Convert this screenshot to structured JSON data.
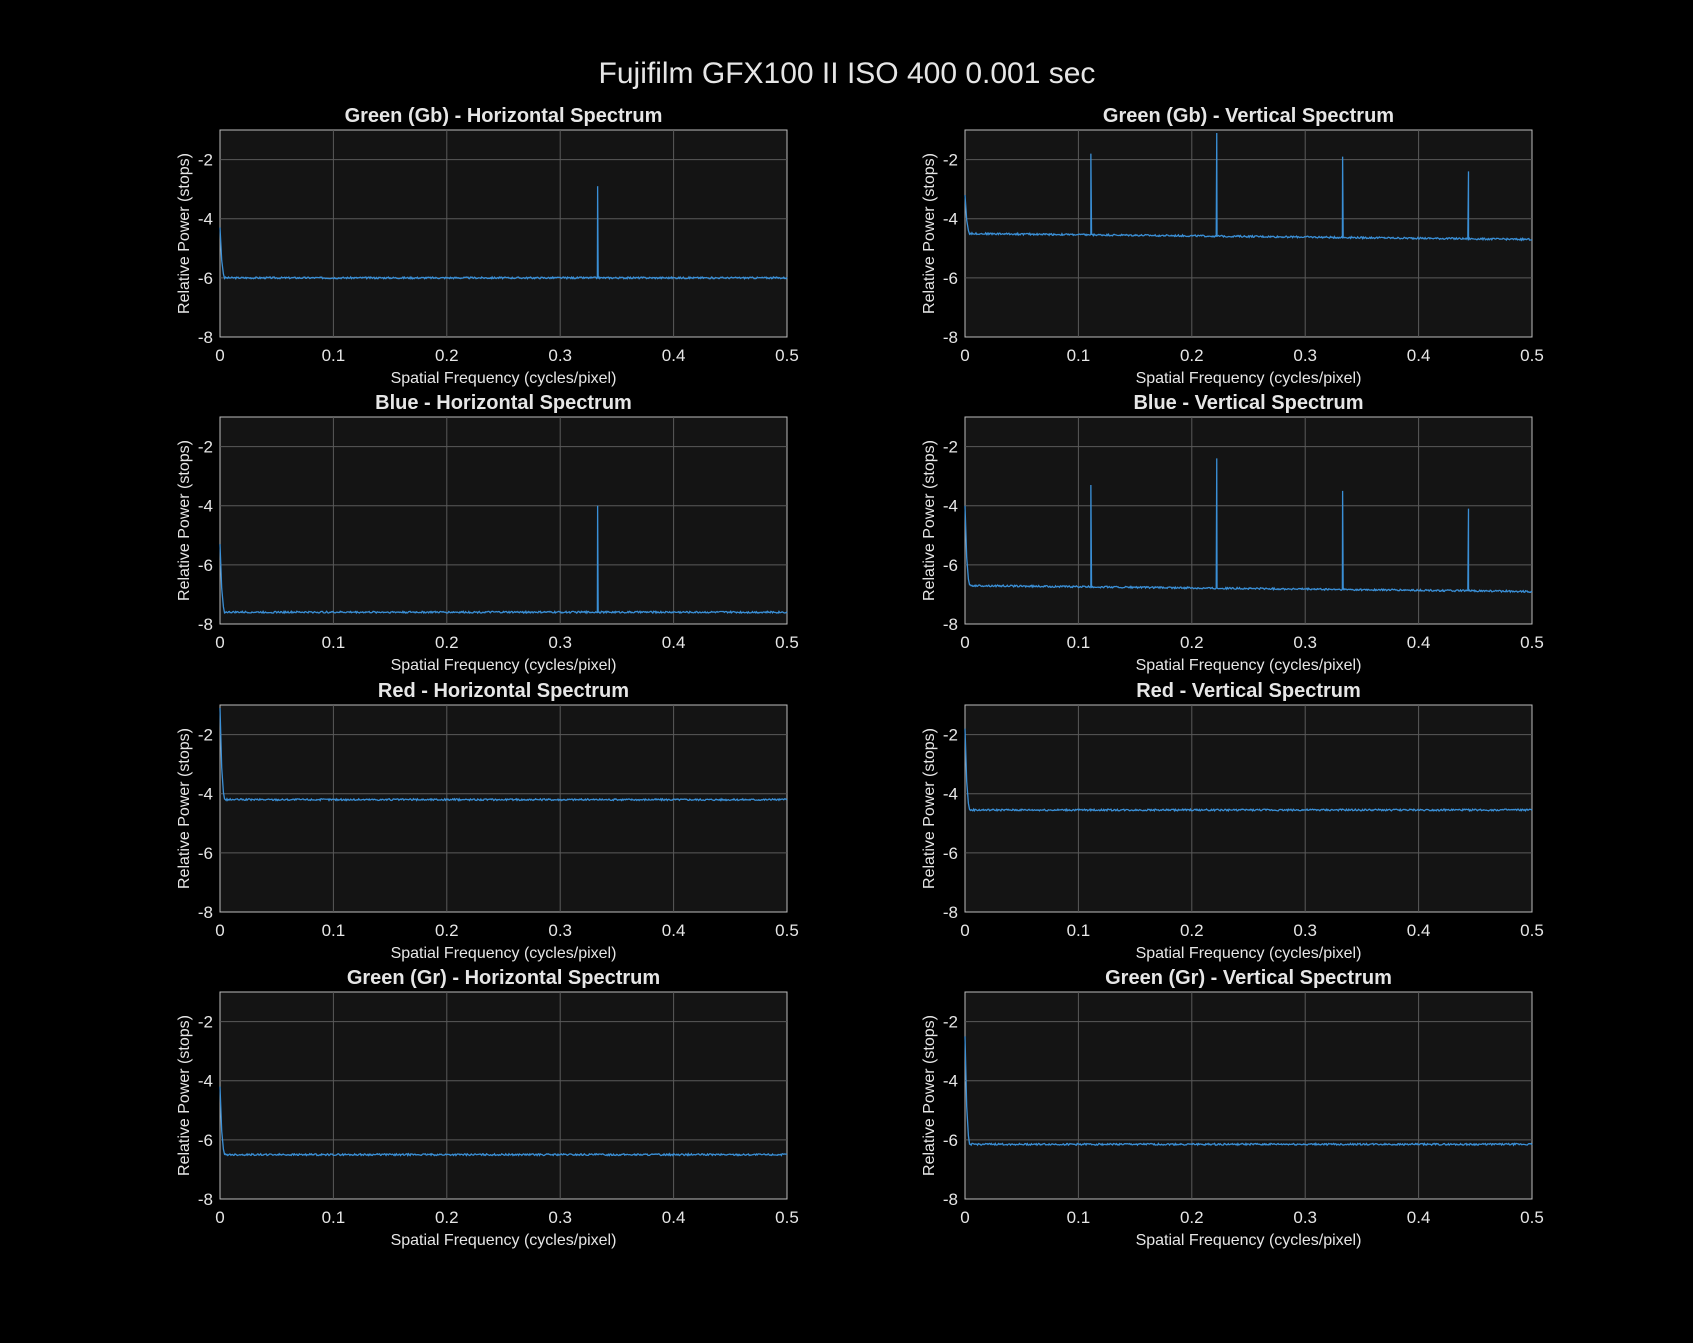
{
  "figure": {
    "title": "Fujifilm GFX100 II ISO 400 0.001 sec"
  },
  "colors": {
    "background": "#000000",
    "axes_background": "#141414",
    "series": "#3a8fd6",
    "text": "#e6e6e6"
  },
  "chart_data": [
    {
      "type": "line",
      "title": "Green (Gb) - Horizontal Spectrum",
      "xlabel": "Spatial Frequency (cycles/pixel)",
      "ylabel": "Relative Power (stops)",
      "xlim": [
        0,
        0.5
      ],
      "ylim": [
        -8,
        -1
      ],
      "y_reversed": true,
      "xticks": [
        0,
        0.1,
        0.2,
        0.3,
        0.4,
        0.5
      ],
      "xtick_labels": [
        "0",
        "0.1",
        "0.2",
        "0.3",
        "0.4",
        "0.5"
      ],
      "yticks": [
        -2,
        -4,
        -6,
        -8
      ],
      "ytick_labels": [
        "-2",
        "-4",
        "-6",
        "-8"
      ],
      "grid": true,
      "series": [
        {
          "baseline_start": -6.0,
          "baseline_end": -6.0,
          "dc_value": -4.3,
          "spikes": [
            {
              "x": 0.333,
              "y": -2.9
            }
          ]
        }
      ]
    },
    {
      "type": "line",
      "title": "Green (Gb) - Vertical Spectrum",
      "xlabel": "Spatial Frequency (cycles/pixel)",
      "ylabel": "Relative Power (stops)",
      "xlim": [
        0,
        0.5
      ],
      "ylim": [
        -8,
        -1
      ],
      "y_reversed": true,
      "xticks": [
        0,
        0.1,
        0.2,
        0.3,
        0.4,
        0.5
      ],
      "xtick_labels": [
        "0",
        "0.1",
        "0.2",
        "0.3",
        "0.4",
        "0.5"
      ],
      "yticks": [
        -2,
        -4,
        -6,
        -8
      ],
      "ytick_labels": [
        "-2",
        "-4",
        "-6",
        "-8"
      ],
      "grid": true,
      "series": [
        {
          "baseline_start": -4.5,
          "baseline_end": -4.7,
          "dc_value": -3.2,
          "spikes": [
            {
              "x": 0.111,
              "y": -1.8
            },
            {
              "x": 0.222,
              "y": -1.1
            },
            {
              "x": 0.333,
              "y": -1.9
            },
            {
              "x": 0.444,
              "y": -2.4
            }
          ]
        }
      ]
    },
    {
      "type": "line",
      "title": "Blue - Horizontal Spectrum",
      "xlabel": "Spatial Frequency (cycles/pixel)",
      "ylabel": "Relative Power (stops)",
      "xlim": [
        0,
        0.5
      ],
      "ylim": [
        -8,
        -1
      ],
      "y_reversed": true,
      "xticks": [
        0,
        0.1,
        0.2,
        0.3,
        0.4,
        0.5
      ],
      "xtick_labels": [
        "0",
        "0.1",
        "0.2",
        "0.3",
        "0.4",
        "0.5"
      ],
      "yticks": [
        -2,
        -4,
        -6,
        -8
      ],
      "ytick_labels": [
        "-2",
        "-4",
        "-6",
        "-8"
      ],
      "grid": true,
      "series": [
        {
          "baseline_start": -7.6,
          "baseline_end": -7.6,
          "dc_value": -5.3,
          "spikes": [
            {
              "x": 0.333,
              "y": -4.0
            }
          ]
        }
      ]
    },
    {
      "type": "line",
      "title": "Blue - Vertical Spectrum",
      "xlabel": "Spatial Frequency (cycles/pixel)",
      "ylabel": "Relative Power (stops)",
      "xlim": [
        0,
        0.5
      ],
      "ylim": [
        -8,
        -1
      ],
      "y_reversed": true,
      "xticks": [
        0,
        0.1,
        0.2,
        0.3,
        0.4,
        0.5
      ],
      "xtick_labels": [
        "0",
        "0.1",
        "0.2",
        "0.3",
        "0.4",
        "0.5"
      ],
      "yticks": [
        -2,
        -4,
        -6,
        -8
      ],
      "ytick_labels": [
        "-2",
        "-4",
        "-6",
        "-8"
      ],
      "grid": true,
      "series": [
        {
          "baseline_start": -6.7,
          "baseline_end": -6.9,
          "dc_value": -4.0,
          "spikes": [
            {
              "x": 0.111,
              "y": -3.3
            },
            {
              "x": 0.222,
              "y": -2.4
            },
            {
              "x": 0.333,
              "y": -3.5
            },
            {
              "x": 0.444,
              "y": -4.1
            }
          ]
        }
      ]
    },
    {
      "type": "line",
      "title": "Red - Horizontal Spectrum",
      "xlabel": "Spatial Frequency (cycles/pixel)",
      "ylabel": "Relative Power (stops)",
      "xlim": [
        0,
        0.5
      ],
      "ylim": [
        -8,
        -1
      ],
      "y_reversed": true,
      "xticks": [
        0,
        0.1,
        0.2,
        0.3,
        0.4,
        0.5
      ],
      "xtick_labels": [
        "0",
        "0.1",
        "0.2",
        "0.3",
        "0.4",
        "0.5"
      ],
      "yticks": [
        -2,
        -4,
        -6,
        -8
      ],
      "ytick_labels": [
        "-2",
        "-4",
        "-6",
        "-8"
      ],
      "grid": true,
      "series": [
        {
          "baseline_start": -4.2,
          "baseline_end": -4.2,
          "dc_value": -1.1,
          "spikes": []
        }
      ]
    },
    {
      "type": "line",
      "title": "Red - Vertical Spectrum",
      "xlabel": "Spatial Frequency (cycles/pixel)",
      "ylabel": "Relative Power (stops)",
      "xlim": [
        0,
        0.5
      ],
      "ylim": [
        -8,
        -1
      ],
      "y_reversed": true,
      "xticks": [
        0,
        0.1,
        0.2,
        0.3,
        0.4,
        0.5
      ],
      "xtick_labels": [
        "0",
        "0.1",
        "0.2",
        "0.3",
        "0.4",
        "0.5"
      ],
      "yticks": [
        -2,
        -4,
        -6,
        -8
      ],
      "ytick_labels": [
        "-2",
        "-4",
        "-6",
        "-8"
      ],
      "grid": true,
      "series": [
        {
          "baseline_start": -4.55,
          "baseline_end": -4.55,
          "dc_value": -1.8,
          "spikes": []
        }
      ]
    },
    {
      "type": "line",
      "title": "Green (Gr) - Horizontal Spectrum",
      "xlabel": "Spatial Frequency (cycles/pixel)",
      "ylabel": "Relative Power (stops)",
      "xlim": [
        0,
        0.5
      ],
      "ylim": [
        -8,
        -1
      ],
      "y_reversed": true,
      "xticks": [
        0,
        0.1,
        0.2,
        0.3,
        0.4,
        0.5
      ],
      "xtick_labels": [
        "0",
        "0.1",
        "0.2",
        "0.3",
        "0.4",
        "0.5"
      ],
      "yticks": [
        -2,
        -4,
        -6,
        -8
      ],
      "ytick_labels": [
        "-2",
        "-4",
        "-6",
        "-8"
      ],
      "grid": true,
      "series": [
        {
          "baseline_start": -6.5,
          "baseline_end": -6.5,
          "dc_value": -4.2,
          "spikes": []
        }
      ]
    },
    {
      "type": "line",
      "title": "Green (Gr) - Vertical Spectrum",
      "xlabel": "Spatial Frequency (cycles/pixel)",
      "ylabel": "Relative Power (stops)",
      "xlim": [
        0,
        0.5
      ],
      "ylim": [
        -8,
        -1
      ],
      "y_reversed": true,
      "xticks": [
        0,
        0.1,
        0.2,
        0.3,
        0.4,
        0.5
      ],
      "xtick_labels": [
        "0",
        "0.1",
        "0.2",
        "0.3",
        "0.4",
        "0.5"
      ],
      "yticks": [
        -2,
        -4,
        -6,
        -8
      ],
      "ytick_labels": [
        "-2",
        "-4",
        "-6",
        "-8"
      ],
      "grid": true,
      "series": [
        {
          "baseline_start": -6.15,
          "baseline_end": -6.15,
          "dc_value": -2.5,
          "spikes": []
        }
      ]
    }
  ]
}
